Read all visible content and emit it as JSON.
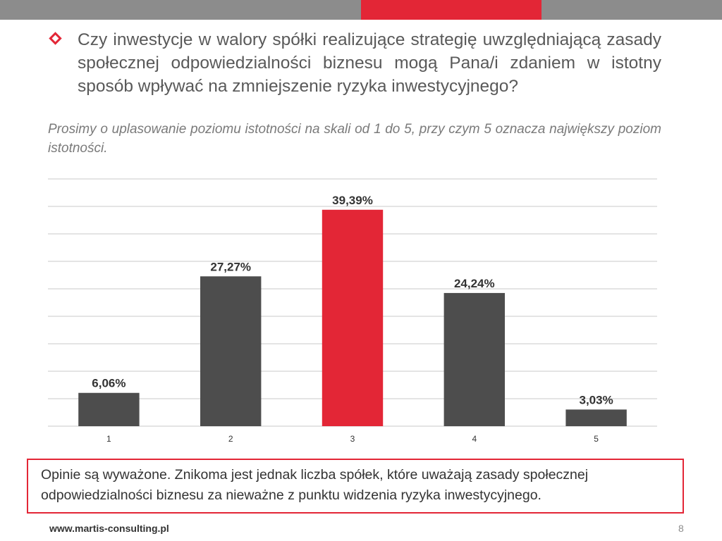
{
  "slide": {
    "question": "Czy inwestycje w walory spółki realizujące strategię uwzględniającą zasady społecznej odpowiedzialności biznesu mogą Pana/i zdaniem w istotny sposób wpływać na zmniejszenie ryzyka inwestycyjnego?",
    "instruction": "Prosimy o uplasowanie poziomu istotności na skali od 1 do 5, przy czym 5 oznacza największy poziom istotności.",
    "note": "Opinie są wyważone. Znikoma jest jednak liczba spółek, które uważają zasady społecznej odpowiedzialności biznesu za nieważne z punktu widzenia ryzyka inwestycyjnego.",
    "footer_url": "www.martis-consulting.pl",
    "page_number": "8"
  },
  "colors": {
    "accent": "#e32636",
    "bar_default": "#4d4d4d",
    "bar_highlight": "#e32636",
    "grid": "#c8c8c8",
    "band": "#8c8c8c"
  },
  "chart_data": {
    "type": "bar",
    "categories": [
      "1",
      "2",
      "3",
      "4",
      "5"
    ],
    "values": [
      6.06,
      27.27,
      39.39,
      24.24,
      3.03
    ],
    "data_labels": [
      "6,06%",
      "27,27%",
      "39,39%",
      "24,24%",
      "3,03%"
    ],
    "highlight_index": 2,
    "title": "",
    "xlabel": "",
    "ylabel": "",
    "ylim": [
      0,
      45
    ],
    "grid": true,
    "legend": "none"
  }
}
